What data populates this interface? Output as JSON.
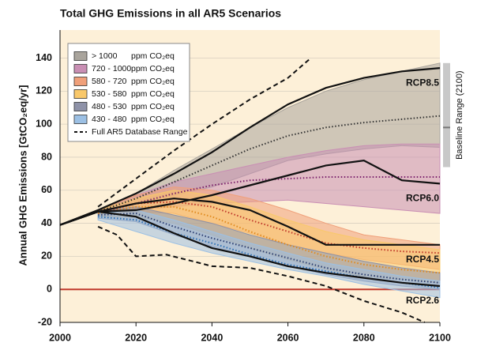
{
  "chart_data": {
    "type": "area",
    "title": "Total GHG Emissions in all AR5 Scenarios",
    "y_label": "Annual GHG Emissions [GtCO₂eq/yr]",
    "x": [
      2000,
      2010,
      2020,
      2030,
      2040,
      2050,
      2060,
      2070,
      2080,
      2090,
      2100
    ],
    "xlim": [
      2000,
      2100
    ],
    "xticks": [
      2000,
      2020,
      2040,
      2060,
      2080,
      2100
    ],
    "ylim": [
      -20,
      157
    ],
    "yticks": [
      -20,
      0,
      20,
      40,
      60,
      80,
      100,
      120,
      140
    ],
    "grid": true,
    "background": "#fdf0d8",
    "zero_line_color": "#c0392b",
    "legend_unit": "ppm CO₂eq",
    "series": [
      {
        "name": "> 1000",
        "color": "#a9a49c",
        "median_color": "#333333",
        "upper": [
          null,
          48,
          58,
          72,
          85,
          98,
          110,
          120,
          127,
          132,
          137
        ],
        "lower": [
          null,
          46,
          52,
          57,
          62,
          70,
          78,
          82,
          85,
          87,
          86
        ],
        "median": [
          null,
          47,
          55,
          65,
          75,
          85,
          93,
          98,
          101,
          103,
          105
        ]
      },
      {
        "name": "720 - 1000",
        "color": "#c98fb4",
        "median_color": "#7a1f6a",
        "upper": [
          null,
          48,
          57,
          65,
          70,
          75,
          80,
          84,
          87,
          88,
          88
        ],
        "lower": [
          null,
          46,
          48,
          50,
          52,
          53,
          54,
          52,
          50,
          48,
          46
        ],
        "median": [
          null,
          47,
          52,
          58,
          63,
          66,
          67,
          68,
          68,
          68,
          68
        ]
      },
      {
        "name": "580 - 720",
        "color": "#f0a07a",
        "median_color": "#c0392b",
        "upper": [
          null,
          48,
          57,
          62,
          60,
          55,
          48,
          40,
          33,
          30,
          27
        ],
        "lower": [
          null,
          45,
          47,
          46,
          40,
          34,
          27,
          22,
          18,
          15,
          12
        ],
        "median": [
          null,
          46,
          52,
          53,
          50,
          42,
          35,
          28,
          25,
          23,
          22
        ]
      },
      {
        "name": "530 - 580",
        "color": "#f9c86a",
        "median_color": "#e08a1e",
        "upper": [
          null,
          48,
          55,
          60,
          57,
          50,
          42,
          35,
          30,
          27,
          24
        ],
        "lower": [
          null,
          44,
          44,
          40,
          33,
          25,
          18,
          12,
          8,
          6,
          4
        ],
        "median": [
          null,
          46,
          50,
          50,
          44,
          35,
          27,
          20,
          15,
          12,
          10
        ]
      },
      {
        "name": "480 - 530",
        "color": "#8e92a8",
        "median_color": "#2c3e70",
        "upper": [
          null,
          47,
          50,
          45,
          40,
          33,
          27,
          22,
          17,
          13,
          10
        ],
        "lower": [
          null,
          43,
          41,
          33,
          26,
          20,
          14,
          9,
          5,
          2,
          0
        ],
        "median": [
          null,
          45,
          46,
          38,
          31,
          25,
          19,
          13,
          9,
          6,
          4
        ]
      },
      {
        "name": "430 - 480",
        "color": "#9cc0e4",
        "median_color": "#2a6fb5",
        "upper": [
          null,
          46,
          48,
          42,
          35,
          28,
          22,
          16,
          12,
          8,
          5
        ],
        "lower": [
          null,
          42,
          35,
          28,
          22,
          17,
          12,
          8,
          3,
          -1,
          -5
        ],
        "median": [
          null,
          44,
          42,
          34,
          28,
          21,
          15,
          11,
          7,
          4,
          1
        ]
      }
    ],
    "rcp_lines": [
      {
        "name": "RCP8.5",
        "color": "#111111",
        "values": [
          39,
          48,
          58,
          70,
          83,
          98,
          112,
          122,
          128,
          132,
          134
        ]
      },
      {
        "name": "RCP6.0",
        "color": "#111111",
        "values": [
          39,
          47,
          48,
          52,
          57,
          63,
          69,
          75,
          78,
          66,
          64
        ]
      },
      {
        "name": "RCP4.5",
        "color": "#111111",
        "values": [
          39,
          47,
          52,
          55,
          53,
          48,
          38,
          27,
          27,
          27,
          27
        ]
      },
      {
        "name": "RCP2.6",
        "color": "#111111",
        "values": [
          39,
          47,
          44,
          34,
          25,
          20,
          14,
          10,
          7,
          4,
          2
        ]
      }
    ],
    "full_range": {
      "name": "Full AR5 Database Range",
      "color": "#111111",
      "upper": {
        "x": [
          2010,
          2020,
          2030,
          2040,
          2050,
          2060,
          2066
        ],
        "values": [
          50,
          67,
          84,
          100,
          115,
          128,
          140
        ]
      },
      "lower": {
        "x": [
          2010,
          2015,
          2020,
          2028,
          2035,
          2040,
          2050,
          2060,
          2070,
          2080,
          2090,
          2096
        ],
        "values": [
          38,
          33,
          20,
          21,
          17,
          14,
          13,
          8,
          2,
          -7,
          -14,
          -20
        ]
      }
    },
    "baseline_range": {
      "label": "Baseline Range (2100)",
      "color": "#c8c8c8",
      "median_color": "#777777",
      "low": 74,
      "high": 137,
      "median": 98
    }
  }
}
